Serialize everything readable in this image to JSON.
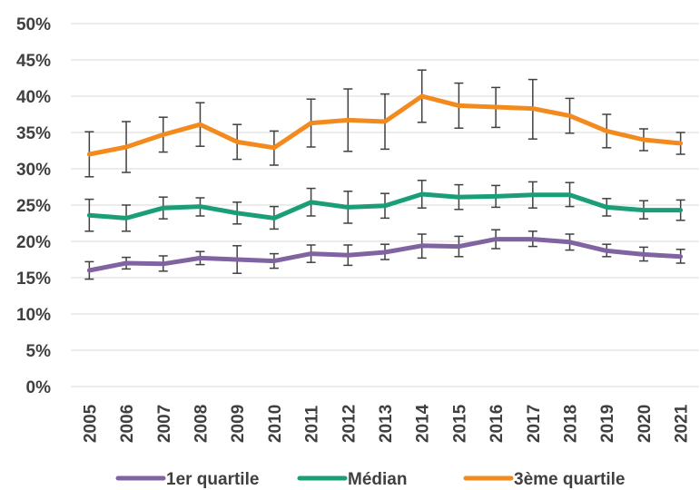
{
  "chart_data": {
    "type": "line",
    "title": "",
    "xlabel": "",
    "ylabel": "",
    "x": [
      "2005",
      "2006",
      "2007",
      "2008",
      "2009",
      "2010",
      "2011",
      "2012",
      "2013",
      "2014",
      "2015",
      "2016",
      "2017",
      "2018",
      "2019",
      "2020",
      "2021"
    ],
    "y_ticks": [
      "0%",
      "5%",
      "10%",
      "15%",
      "20%",
      "25%",
      "30%",
      "35%",
      "40%",
      "45%",
      "50%"
    ],
    "ylim": [
      0,
      50
    ],
    "grid": true,
    "legend_position": "bottom",
    "error_bars": true,
    "series": [
      {
        "name": "1er quartile",
        "color": "#8064a2",
        "values": [
          16.0,
          17.0,
          16.9,
          17.7,
          17.5,
          17.3,
          18.3,
          18.1,
          18.5,
          19.4,
          19.3,
          20.3,
          20.3,
          19.9,
          18.7,
          18.2,
          17.9
        ],
        "err_low": [
          14.8,
          16.2,
          15.9,
          16.8,
          15.6,
          16.3,
          17.1,
          16.7,
          17.5,
          17.7,
          17.9,
          19.0,
          19.3,
          18.8,
          17.9,
          17.3,
          17.0
        ],
        "err_high": [
          17.2,
          17.8,
          18.0,
          18.6,
          19.4,
          18.3,
          19.5,
          19.5,
          19.6,
          21.0,
          20.7,
          21.6,
          21.4,
          21.0,
          19.6,
          19.2,
          18.9
        ]
      },
      {
        "name": "Médian",
        "color": "#1a9e77",
        "values": [
          23.6,
          23.2,
          24.6,
          24.8,
          23.9,
          23.2,
          25.4,
          24.7,
          24.9,
          26.5,
          26.1,
          26.2,
          26.4,
          26.4,
          24.7,
          24.3,
          24.3
        ],
        "err_low": [
          21.4,
          21.4,
          23.1,
          23.5,
          22.4,
          21.7,
          23.5,
          22.5,
          23.2,
          24.6,
          24.4,
          24.7,
          24.6,
          24.8,
          23.5,
          23.1,
          22.9
        ],
        "err_high": [
          25.8,
          25.0,
          26.1,
          26.0,
          25.4,
          24.8,
          27.3,
          26.9,
          26.6,
          28.4,
          27.8,
          27.7,
          28.2,
          28.1,
          25.9,
          25.6,
          25.7
        ]
      },
      {
        "name": "3ème quartile",
        "color": "#f28a1e",
        "values": [
          32.0,
          33.0,
          34.7,
          36.1,
          33.7,
          32.9,
          36.3,
          36.7,
          36.5,
          40.0,
          38.7,
          38.5,
          38.3,
          37.3,
          35.2,
          34.0,
          33.5
        ],
        "err_low": [
          28.9,
          29.5,
          32.3,
          33.1,
          31.3,
          30.5,
          33.0,
          32.4,
          32.7,
          36.4,
          35.6,
          35.7,
          34.1,
          34.9,
          32.9,
          32.5,
          32.0
        ],
        "err_high": [
          35.1,
          36.5,
          37.1,
          39.1,
          36.1,
          35.2,
          39.6,
          41.0,
          40.3,
          43.6,
          41.8,
          41.2,
          42.3,
          39.7,
          37.5,
          35.5,
          35.0
        ]
      }
    ]
  }
}
